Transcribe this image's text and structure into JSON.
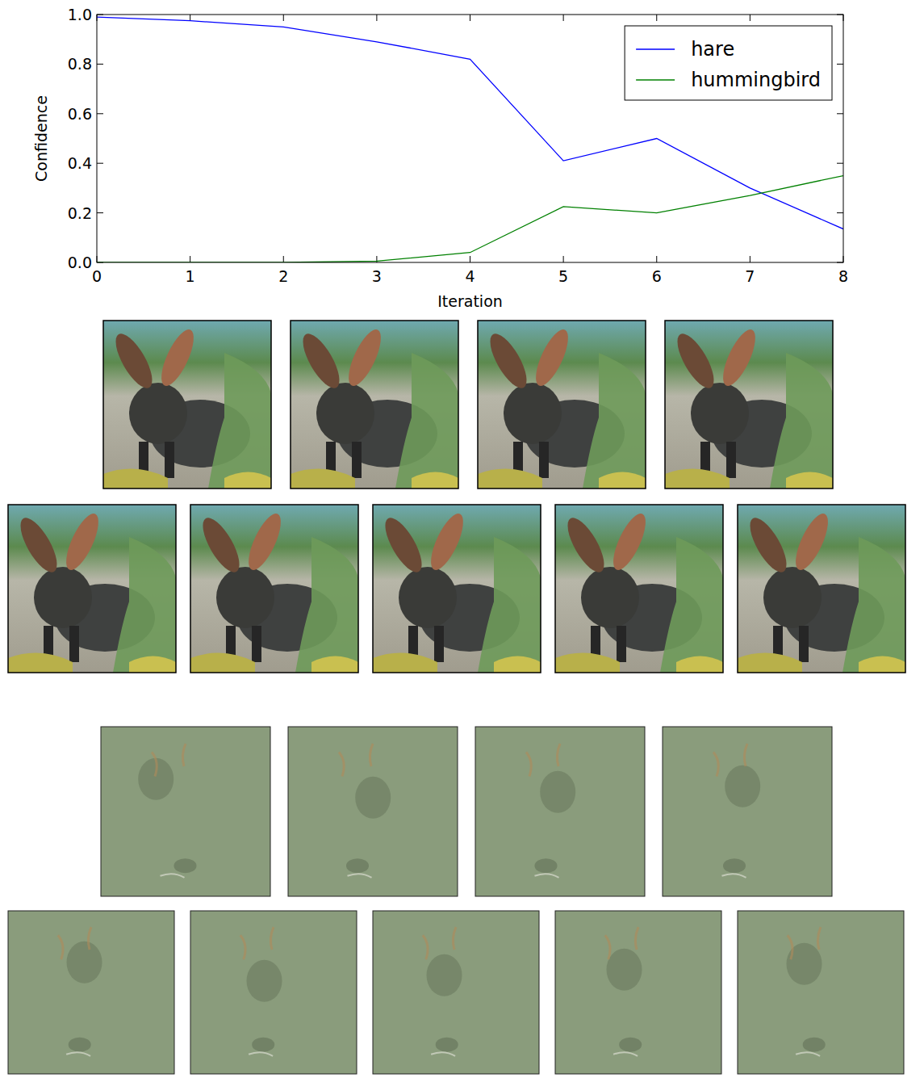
{
  "chart_data": {
    "type": "line",
    "x_label": "Iteration",
    "y_label": "Confidence",
    "x": [
      0,
      1,
      2,
      3,
      4,
      5,
      6,
      7,
      8
    ],
    "series": [
      {
        "name": "hare",
        "color": "#0000ff",
        "values": [
          0.99,
          0.975,
          0.95,
          0.89,
          0.82,
          0.41,
          0.5,
          0.3,
          0.135
        ]
      },
      {
        "name": "hummingbird",
        "color": "#008000",
        "values": [
          0,
          0,
          0,
          0.005,
          0.04,
          0.225,
          0.2,
          0.27,
          0.35
        ]
      }
    ],
    "xlim": [
      0,
      8
    ],
    "ylim": [
      0,
      1
    ],
    "xticks": [
      0,
      1,
      2,
      3,
      4,
      5,
      6,
      7,
      8
    ],
    "yticks": [
      {
        "value": 0,
        "label": "0.0"
      },
      0.2,
      0.4,
      0.6,
      0.8,
      {
        "value": 1,
        "label": "1.0"
      }
    ],
    "legend": "upper right",
    "grid": false
  }
}
